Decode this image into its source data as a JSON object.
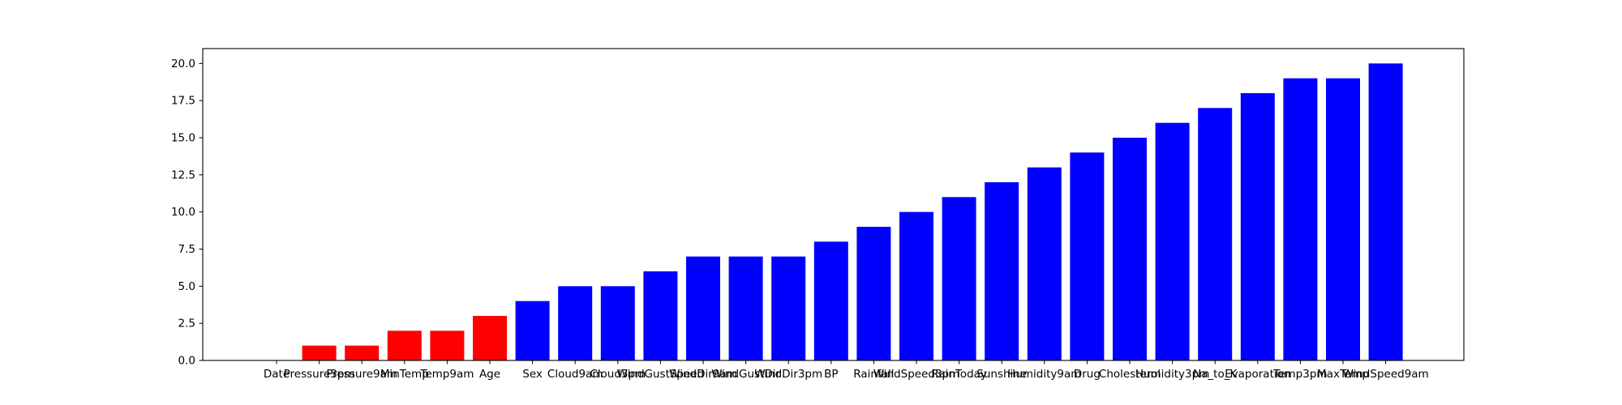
{
  "chart_data": {
    "type": "bar",
    "title": "",
    "xlabel": "",
    "ylabel": "",
    "ylim": [
      0,
      21
    ],
    "yticks": [
      "0.0",
      "2.5",
      "5.0",
      "7.5",
      "10.0",
      "12.5",
      "15.0",
      "17.5",
      "20.0"
    ],
    "ytick_values": [
      0,
      2.5,
      5,
      7.5,
      10,
      12.5,
      15,
      17.5,
      20
    ],
    "grid": false,
    "legend": "none",
    "categories": [
      "Date",
      "Pressure3pm",
      "Pressure9am",
      "MinTemp",
      "Temp9am",
      "Age",
      "Sex",
      "Cloud9am",
      "Cloud3pm",
      "WindGustSpeed",
      "WindDir9am",
      "WindGustDir",
      "WindDir3pm",
      "BP",
      "Rainfall",
      "WindSpeed3pm",
      "RainToday",
      "Sunshine",
      "Humidity9am",
      "Drug",
      "Cholesterol",
      "Humidity3pm",
      "Na_to_K",
      "Evaporation",
      "Temp3pm",
      "MaxTemp",
      "WindSpeed9am"
    ],
    "values": [
      0,
      1,
      1,
      2,
      2,
      3,
      4,
      5,
      5,
      6,
      7,
      7,
      7,
      8,
      9,
      10,
      11,
      12,
      13,
      14,
      15,
      16,
      17,
      18,
      19,
      19,
      20
    ],
    "bar_colors": [
      "#ff0000",
      "#ff0000",
      "#ff0000",
      "#ff0000",
      "#ff0000",
      "#ff0000",
      "#0000ff",
      "#0000ff",
      "#0000ff",
      "#0000ff",
      "#0000ff",
      "#0000ff",
      "#0000ff",
      "#0000ff",
      "#0000ff",
      "#0000ff",
      "#0000ff",
      "#0000ff",
      "#0000ff",
      "#0000ff",
      "#0000ff",
      "#0000ff",
      "#0000ff",
      "#0000ff",
      "#0000ff",
      "#0000ff",
      "#0000ff"
    ]
  }
}
